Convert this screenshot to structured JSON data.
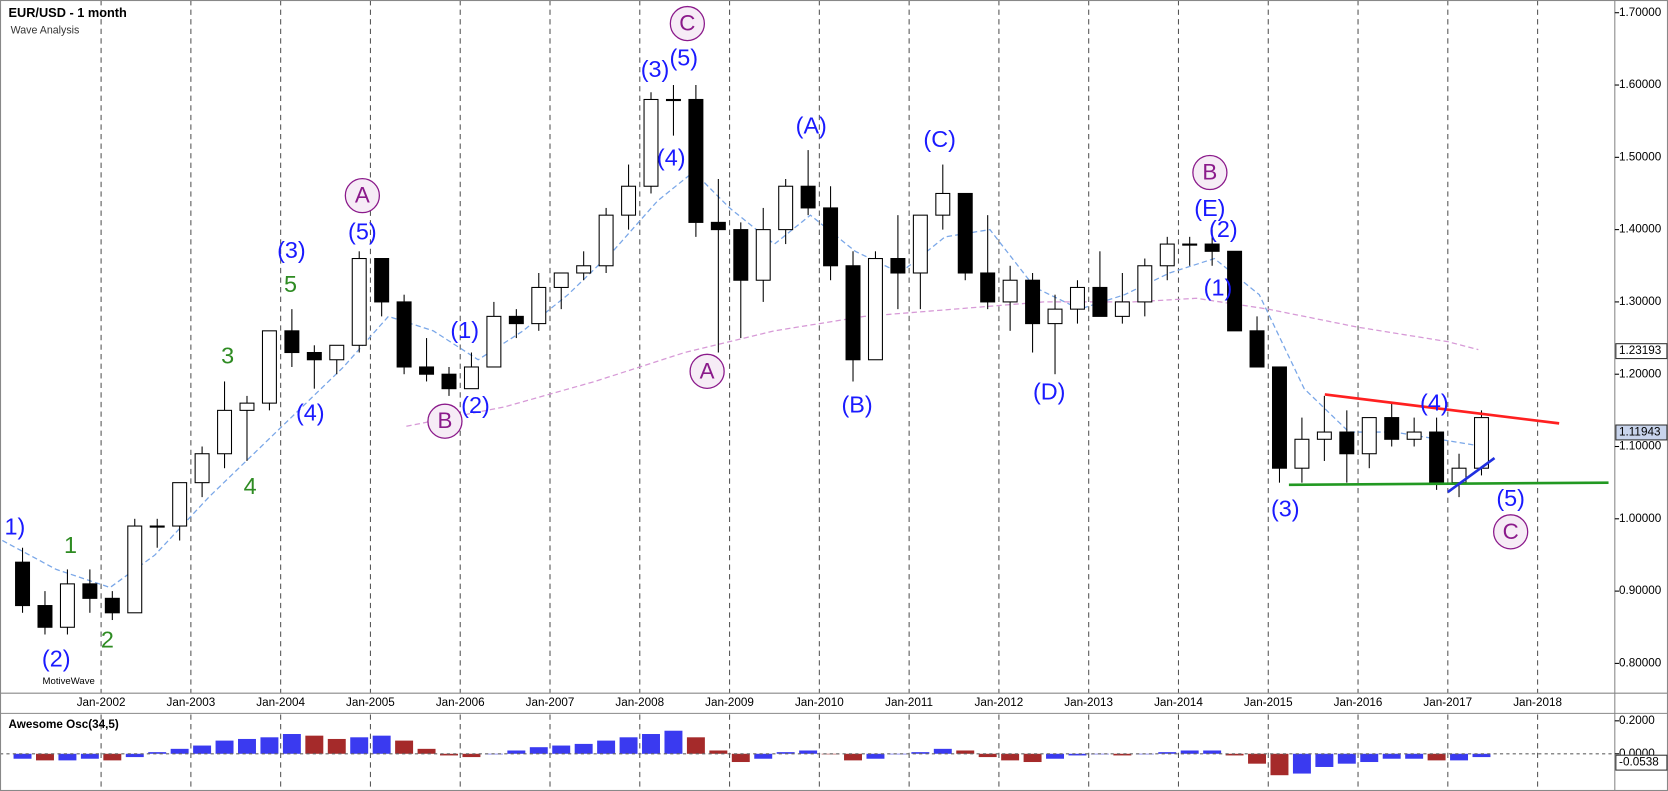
{
  "chart_data": [
    {
      "type": "candlestick",
      "title": "EUR/USD - 1 month",
      "subtitle": "Wave Analysis",
      "watermark": "MotiveWave",
      "up_color": "#ffffff",
      "down_color": "#000000",
      "x": [
        "Jan-2001",
        "Apr-2001",
        "Jul-2001",
        "Oct-2001",
        "Jan-2002",
        "Apr-2002",
        "Jul-2002",
        "Oct-2002",
        "Jan-2003",
        "Apr-2003",
        "Jul-2003",
        "Oct-2003",
        "Jan-2004",
        "Apr-2004",
        "Jul-2004",
        "Oct-2004",
        "Jan-2005",
        "Apr-2005",
        "Jul-2005",
        "Oct-2005",
        "Jan-2006",
        "Apr-2006",
        "Jul-2006",
        "Oct-2006",
        "Jan-2007",
        "Apr-2007",
        "Jul-2007",
        "Oct-2007",
        "Jan-2008",
        "Apr-2008",
        "Jul-2008",
        "Oct-2008",
        "Jan-2009",
        "Apr-2009",
        "Jul-2009",
        "Oct-2009",
        "Jan-2010",
        "Apr-2010",
        "Jul-2010",
        "Oct-2010",
        "Jan-2011",
        "Apr-2011",
        "Jul-2011",
        "Oct-2011",
        "Jan-2012",
        "Apr-2012",
        "Jul-2012",
        "Oct-2012",
        "Jan-2013",
        "Apr-2013",
        "Jul-2013",
        "Oct-2013",
        "Jan-2014",
        "Apr-2014",
        "Jul-2014",
        "Oct-2014",
        "Jan-2015",
        "Apr-2015",
        "Jul-2015",
        "Oct-2015",
        "Jan-2016",
        "Apr-2016",
        "Jul-2016",
        "Oct-2016",
        "Jan-2017",
        "Apr-2017"
      ],
      "open": [
        0.94,
        0.88,
        0.85,
        0.91,
        0.89,
        0.87,
        0.99,
        0.99,
        1.05,
        1.09,
        1.15,
        1.16,
        1.26,
        1.23,
        1.22,
        1.24,
        1.36,
        1.3,
        1.21,
        1.2,
        1.18,
        1.21,
        1.28,
        1.27,
        1.32,
        1.34,
        1.35,
        1.42,
        1.46,
        1.58,
        1.58,
        1.41,
        1.4,
        1.33,
        1.4,
        1.46,
        1.43,
        1.35,
        1.22,
        1.36,
        1.34,
        1.42,
        1.45,
        1.34,
        1.3,
        1.33,
        1.27,
        1.29,
        1.32,
        1.28,
        1.3,
        1.35,
        1.38,
        1.38,
        1.37,
        1.26,
        1.21,
        1.07,
        1.11,
        1.12,
        1.09,
        1.14,
        1.11,
        1.12,
        1.05,
        1.07
      ],
      "high": [
        0.96,
        0.9,
        0.93,
        0.93,
        0.9,
        1.0,
        1.0,
        1.05,
        1.1,
        1.19,
        1.17,
        1.26,
        1.29,
        1.24,
        1.24,
        1.37,
        1.36,
        1.31,
        1.25,
        1.21,
        1.23,
        1.3,
        1.29,
        1.34,
        1.34,
        1.37,
        1.43,
        1.49,
        1.59,
        1.6,
        1.6,
        1.47,
        1.41,
        1.43,
        1.47,
        1.51,
        1.46,
        1.37,
        1.37,
        1.42,
        1.42,
        1.49,
        1.45,
        1.42,
        1.35,
        1.34,
        1.31,
        1.33,
        1.37,
        1.34,
        1.36,
        1.39,
        1.39,
        1.4,
        1.37,
        1.28,
        1.21,
        1.14,
        1.17,
        1.15,
        1.14,
        1.16,
        1.14,
        1.14,
        1.09,
        1.15
      ],
      "low": [
        0.87,
        0.84,
        0.84,
        0.87,
        0.86,
        0.87,
        0.96,
        0.97,
        1.03,
        1.07,
        1.08,
        1.15,
        1.21,
        1.18,
        1.2,
        1.23,
        1.28,
        1.2,
        1.19,
        1.17,
        1.18,
        1.21,
        1.25,
        1.26,
        1.29,
        1.33,
        1.34,
        1.4,
        1.45,
        1.53,
        1.39,
        1.23,
        1.25,
        1.3,
        1.38,
        1.42,
        1.33,
        1.19,
        1.22,
        1.29,
        1.29,
        1.4,
        1.33,
        1.29,
        1.26,
        1.23,
        1.2,
        1.27,
        1.28,
        1.27,
        1.28,
        1.33,
        1.35,
        1.35,
        1.26,
        1.21,
        1.05,
        1.05,
        1.08,
        1.05,
        1.07,
        1.1,
        1.1,
        1.04,
        1.03,
        1.06
      ],
      "close": [
        0.88,
        0.85,
        0.91,
        0.89,
        0.87,
        0.99,
        0.99,
        1.05,
        1.09,
        1.15,
        1.16,
        1.26,
        1.23,
        1.22,
        1.24,
        1.36,
        1.3,
        1.21,
        1.2,
        1.18,
        1.21,
        1.28,
        1.27,
        1.32,
        1.34,
        1.35,
        1.42,
        1.46,
        1.58,
        1.58,
        1.41,
        1.4,
        1.33,
        1.4,
        1.46,
        1.43,
        1.35,
        1.22,
        1.36,
        1.34,
        1.42,
        1.45,
        1.34,
        1.3,
        1.33,
        1.27,
        1.29,
        1.32,
        1.28,
        1.3,
        1.35,
        1.38,
        1.38,
        1.37,
        1.26,
        1.21,
        1.07,
        1.11,
        1.12,
        1.09,
        1.14,
        1.11,
        1.12,
        1.05,
        1.07,
        1.14
      ],
      "xlim": [
        2000.874,
        2018.86
      ],
      "ylim": [
        0.7588,
        1.7176
      ],
      "xticks": [
        "Jan-2002",
        "Jan-2003",
        "Jan-2004",
        "Jan-2005",
        "Jan-2006",
        "Jan-2007",
        "Jan-2008",
        "Jan-2009",
        "Jan-2010",
        "Jan-2011",
        "Jan-2012",
        "Jan-2013",
        "Jan-2014",
        "Jan-2015",
        "Jan-2016",
        "Jan-2017",
        "Jan-2018"
      ],
      "yticks": [
        {
          "value": 0.8,
          "label": "0.80000"
        },
        {
          "value": 0.9,
          "label": "0.90000"
        },
        {
          "value": 1.0,
          "label": "1.00000"
        },
        {
          "value": 1.1,
          "label": "1.10000"
        },
        {
          "value": 1.2,
          "label": "1.20000"
        },
        {
          "value": 1.3,
          "label": "1.30000"
        },
        {
          "value": 1.4,
          "label": "1.40000"
        },
        {
          "value": 1.5,
          "label": "1.50000"
        },
        {
          "value": 1.6,
          "label": "1.60000"
        },
        {
          "value": 1.7,
          "label": "1.70000"
        }
      ],
      "price_labels": [
        {
          "value": 1.23193,
          "label": "1.23193",
          "color": "#ffffff"
        },
        {
          "value": 1.11943,
          "label": "1.11943",
          "color": "#c8d4ec"
        }
      ],
      "moving_averages": [
        {
          "color": "#7aa7e8",
          "x": [
            2000.9,
            2001.5,
            2002.1,
            2002.6,
            2003.2,
            2003.7,
            2004.2,
            2004.7,
            2005.2,
            2005.7,
            2006.2,
            2006.7,
            2007.2,
            2007.7,
            2008.2,
            2008.6,
            2009.0,
            2009.5,
            2009.9,
            2010.4,
            2010.9,
            2011.4,
            2011.9,
            2012.4,
            2012.9,
            2013.4,
            2013.9,
            2014.4,
            2014.9,
            2015.4,
            2015.9,
            2016.4,
            2016.9,
            2017.4
          ],
          "values": [
            0.97,
            0.93,
            0.905,
            0.95,
            1.03,
            1.09,
            1.15,
            1.21,
            1.28,
            1.26,
            1.22,
            1.26,
            1.31,
            1.37,
            1.44,
            1.48,
            1.43,
            1.38,
            1.42,
            1.37,
            1.34,
            1.39,
            1.4,
            1.32,
            1.29,
            1.31,
            1.34,
            1.36,
            1.31,
            1.18,
            1.12,
            1.12,
            1.11,
            1.1
          ]
        },
        {
          "color": "#d79ad7",
          "x": [
            2005.4,
            2006.5,
            2007.5,
            2008.5,
            2009.5,
            2010.5,
            2011.5,
            2012.5,
            2013.5,
            2014.2,
            2015.0,
            2016.0,
            2017.0,
            2017.34
          ],
          "values": [
            1.128,
            1.155,
            1.19,
            1.23,
            1.26,
            1.28,
            1.29,
            1.3,
            1.3,
            1.305,
            1.29,
            1.265,
            1.245,
            1.234
          ]
        }
      ],
      "trendlines": [
        {
          "color": "#ff2020",
          "x": [
            2015.63,
            2018.24
          ],
          "values": [
            1.172,
            1.132
          ]
        },
        {
          "color": "#229922",
          "x": [
            2015.23,
            2018.79
          ],
          "values": [
            1.047,
            1.05
          ]
        },
        {
          "color": "#2030e0",
          "x": [
            2017.0,
            2017.52
          ],
          "values": [
            1.037,
            1.084
          ]
        }
      ],
      "annotations": [
        {
          "text": "1)",
          "color": "#1a1aff",
          "x": 2001.04,
          "y": 0.988,
          "circle": false
        },
        {
          "text": "(2)",
          "color": "#1a1aff",
          "x": 2001.5,
          "y": 0.806,
          "circle": false
        },
        {
          "text": "1",
          "color": "#2e8b22",
          "x": 2001.66,
          "y": 0.963,
          "circle": false
        },
        {
          "text": "2",
          "color": "#2e8b22",
          "x": 2002.07,
          "y": 0.832,
          "circle": false
        },
        {
          "text": "3",
          "color": "#2e8b22",
          "x": 2003.41,
          "y": 1.225,
          "circle": false
        },
        {
          "text": "4",
          "color": "#2e8b22",
          "x": 2003.66,
          "y": 1.044,
          "circle": false
        },
        {
          "text": "5",
          "color": "#2e8b22",
          "x": 2004.11,
          "y": 1.324,
          "circle": false
        },
        {
          "text": "(3)",
          "color": "#1a1aff",
          "x": 2004.12,
          "y": 1.371,
          "circle": false
        },
        {
          "text": "(4)",
          "color": "#1a1aff",
          "x": 2004.33,
          "y": 1.146,
          "circle": false
        },
        {
          "text": "(5)",
          "color": "#1a1aff",
          "x": 2004.91,
          "y": 1.396,
          "circle": false
        },
        {
          "text": "A",
          "color": "#8b1a8b",
          "x": 2004.91,
          "y": 1.447,
          "circle": true
        },
        {
          "text": "B",
          "color": "#8b1a8b",
          "x": 2005.83,
          "y": 1.135,
          "circle": true
        },
        {
          "text": "(1)",
          "color": "#1a1aff",
          "x": 2006.05,
          "y": 1.26,
          "circle": false
        },
        {
          "text": "(2)",
          "color": "#1a1aff",
          "x": 2006.17,
          "y": 1.156,
          "circle": false
        },
        {
          "text": "(3)",
          "color": "#1a1aff",
          "x": 2008.17,
          "y": 1.621,
          "circle": false
        },
        {
          "text": "(5)",
          "color": "#1a1aff",
          "x": 2008.49,
          "y": 1.637,
          "circle": false
        },
        {
          "text": "C",
          "color": "#8b1a8b",
          "x": 2008.53,
          "y": 1.685,
          "circle": true
        },
        {
          "text": "(4)",
          "color": "#1a1aff",
          "x": 2008.35,
          "y": 1.499,
          "circle": false
        },
        {
          "text": "A",
          "color": "#8b1a8b",
          "x": 2008.75,
          "y": 1.204,
          "circle": true
        },
        {
          "text": "(A)",
          "color": "#1a1aff",
          "x": 2009.91,
          "y": 1.543,
          "circle": false
        },
        {
          "text": "(B)",
          "color": "#1a1aff",
          "x": 2010.42,
          "y": 1.157,
          "circle": false
        },
        {
          "text": "(C)",
          "color": "#1a1aff",
          "x": 2011.34,
          "y": 1.524,
          "circle": false
        },
        {
          "text": "(D)",
          "color": "#1a1aff",
          "x": 2012.56,
          "y": 1.175,
          "circle": false
        },
        {
          "text": "B",
          "color": "#8b1a8b",
          "x": 2014.35,
          "y": 1.479,
          "circle": true
        },
        {
          "text": "(E)",
          "color": "#1a1aff",
          "x": 2014.35,
          "y": 1.429,
          "circle": false
        },
        {
          "text": "(2)",
          "color": "#1a1aff",
          "x": 2014.5,
          "y": 1.4,
          "circle": false
        },
        {
          "text": "(1)",
          "color": "#1a1aff",
          "x": 2014.44,
          "y": 1.319,
          "circle": false
        },
        {
          "text": "(3)",
          "color": "#1a1aff",
          "x": 2015.19,
          "y": 1.013,
          "circle": false
        },
        {
          "text": "(4)",
          "color": "#1a1aff",
          "x": 2016.85,
          "y": 1.16,
          "circle": false
        },
        {
          "text": "(5)",
          "color": "#1a1aff",
          "x": 2017.7,
          "y": 1.028,
          "circle": false
        },
        {
          "text": "C",
          "color": "#8b1a8b",
          "x": 2017.7,
          "y": 0.982,
          "circle": true
        }
      ]
    },
    {
      "type": "bar",
      "title": "Awesome Osc(34,5)",
      "up_color": "#3a3af0",
      "down_color": "#a52a2a",
      "x": [
        "Jan-2001",
        "Apr-2001",
        "Jul-2001",
        "Oct-2001",
        "Jan-2002",
        "Apr-2002",
        "Jul-2002",
        "Oct-2002",
        "Jan-2003",
        "Apr-2003",
        "Jul-2003",
        "Oct-2003",
        "Jan-2004",
        "Apr-2004",
        "Jul-2004",
        "Oct-2004",
        "Jan-2005",
        "Apr-2005",
        "Jul-2005",
        "Oct-2005",
        "Jan-2006",
        "Apr-2006",
        "Jul-2006",
        "Oct-2006",
        "Jan-2007",
        "Apr-2007",
        "Jul-2007",
        "Oct-2007",
        "Jan-2008",
        "Apr-2008",
        "Jul-2008",
        "Oct-2008",
        "Jan-2009",
        "Apr-2009",
        "Jul-2009",
        "Oct-2009",
        "Jan-2010",
        "Apr-2010",
        "Jul-2010",
        "Oct-2010",
        "Jan-2011",
        "Apr-2011",
        "Jul-2011",
        "Oct-2011",
        "Jan-2012",
        "Apr-2012",
        "Jul-2012",
        "Oct-2012",
        "Jan-2013",
        "Apr-2013",
        "Jul-2013",
        "Oct-2013",
        "Jan-2014",
        "Apr-2014",
        "Jul-2014",
        "Oct-2014",
        "Jan-2015",
        "Apr-2015",
        "Jul-2015",
        "Oct-2015",
        "Jan-2016",
        "Apr-2016",
        "Jul-2016",
        "Oct-2016",
        "Jan-2017",
        "Apr-2017"
      ],
      "values": [
        -0.03,
        -0.04,
        -0.04,
        -0.03,
        -0.04,
        -0.02,
        0.01,
        0.03,
        0.05,
        0.08,
        0.09,
        0.1,
        0.12,
        0.11,
        0.09,
        0.1,
        0.11,
        0.08,
        0.03,
        -0.01,
        -0.02,
        0.0,
        0.02,
        0.04,
        0.05,
        0.06,
        0.08,
        0.1,
        0.12,
        0.14,
        0.1,
        0.02,
        -0.05,
        -0.03,
        0.01,
        0.02,
        0.0,
        -0.04,
        -0.03,
        0.0,
        0.01,
        0.03,
        0.02,
        -0.02,
        -0.04,
        -0.05,
        -0.03,
        -0.01,
        0.0,
        -0.01,
        0.0,
        0.01,
        0.02,
        0.02,
        -0.01,
        -0.06,
        -0.13,
        -0.12,
        -0.08,
        -0.06,
        -0.05,
        -0.03,
        -0.03,
        -0.04,
        -0.04,
        -0.02
      ],
      "xlim": [
        2000.874,
        2018.86
      ],
      "ylim": [
        -0.2,
        0.2387
      ],
      "yticks": [
        {
          "value": 0.2,
          "label": "0.2000"
        },
        {
          "value": 0.0,
          "label": "0.0000"
        }
      ],
      "current_label": {
        "value": -0.0538,
        "label": "-0.0538"
      }
    }
  ]
}
